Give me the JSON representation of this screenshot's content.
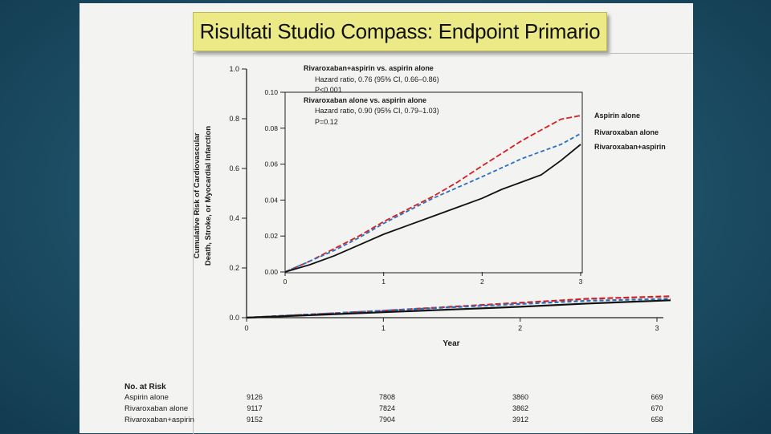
{
  "slide_title": "Risultati Studio Compass: Endpoint Primario",
  "colors": {
    "aspirin": "#d42020",
    "rivaroxaban": "#2a6fc0",
    "combo": "#111111",
    "title_bg": "#ecea86"
  },
  "chart_data": [
    {
      "id": "main",
      "type": "line",
      "ylabel_lines": [
        "Cumulative Risk of Cardiovascular",
        "Death, Stroke, or Myocardial Infarction"
      ],
      "xlabel": "Year",
      "ylim": [
        0,
        1.0
      ],
      "xlim": [
        0,
        3
      ],
      "yticks": [
        "0.0",
        "0.2",
        "0.4",
        "0.6",
        "0.8",
        "1.0"
      ],
      "xticks": [
        "0",
        "1",
        "2",
        "3"
      ],
      "series": [
        {
          "name": "Aspirin alone",
          "x": [
            0,
            0.5,
            1,
            1.5,
            2,
            2.5,
            3.1
          ],
          "y": [
            0,
            0.014,
            0.028,
            0.044,
            0.06,
            0.076,
            0.086
          ]
        },
        {
          "name": "Rivaroxaban alone",
          "x": [
            0,
            0.5,
            1,
            1.5,
            2,
            2.5,
            3.1
          ],
          "y": [
            0,
            0.014,
            0.028,
            0.042,
            0.055,
            0.068,
            0.076
          ]
        },
        {
          "name": "Rivaroxaban+aspirin",
          "x": [
            0,
            0.5,
            1,
            1.5,
            2,
            2.5,
            3.1
          ],
          "y": [
            0,
            0.011,
            0.022,
            0.033,
            0.044,
            0.057,
            0.07
          ]
        }
      ]
    },
    {
      "id": "inset",
      "type": "line",
      "ylim": [
        0,
        0.1
      ],
      "xlim": [
        0,
        3
      ],
      "yticks": [
        "0.00",
        "0.02",
        "0.04",
        "0.06",
        "0.08",
        "0.10"
      ],
      "xticks": [
        "0",
        "1",
        "2",
        "3"
      ],
      "annotation_lines": [
        "Rivaroxaban+aspirin vs. aspirin alone",
        "Hazard ratio, 0.76 (95% CI, 0.66–0.86)",
        "P<0.001",
        "Rivaroxaban alone vs. aspirin alone",
        "Hazard ratio, 0.90 (95% CI, 0.79–1.03)",
        "P=0.12"
      ],
      "series": [
        {
          "name": "Aspirin alone",
          "x": [
            0,
            0.25,
            0.5,
            0.75,
            1,
            1.25,
            1.5,
            1.75,
            2,
            2.2,
            2.4,
            2.6,
            2.8,
            3.0
          ],
          "y": [
            0,
            0.006,
            0.013,
            0.02,
            0.028,
            0.035,
            0.042,
            0.05,
            0.059,
            0.066,
            0.073,
            0.079,
            0.085,
            0.087
          ]
        },
        {
          "name": "Rivaroxaban alone",
          "x": [
            0,
            0.25,
            0.5,
            0.75,
            1,
            1.25,
            1.5,
            1.75,
            2,
            2.2,
            2.4,
            2.6,
            2.8,
            3.0
          ],
          "y": [
            0,
            0.006,
            0.012,
            0.019,
            0.027,
            0.034,
            0.041,
            0.047,
            0.053,
            0.058,
            0.063,
            0.067,
            0.071,
            0.077
          ]
        },
        {
          "name": "Rivaroxaban+aspirin",
          "x": [
            0,
            0.25,
            0.5,
            0.75,
            1,
            1.25,
            1.5,
            1.75,
            2,
            2.2,
            2.4,
            2.6,
            2.8,
            3.0
          ],
          "y": [
            0,
            0.004,
            0.009,
            0.015,
            0.021,
            0.026,
            0.031,
            0.036,
            0.041,
            0.046,
            0.05,
            0.054,
            0.062,
            0.071
          ]
        }
      ]
    }
  ],
  "risk_table": {
    "heading": "No. at Risk",
    "rows": [
      {
        "label": "Aspirin alone",
        "values": [
          "9126",
          "7808",
          "3860",
          "669"
        ]
      },
      {
        "label": "Rivaroxaban alone",
        "values": [
          "9117",
          "7824",
          "3862",
          "670"
        ]
      },
      {
        "label": "Rivaroxaban+aspirin",
        "values": [
          "9152",
          "7904",
          "3912",
          "658"
        ]
      }
    ]
  }
}
